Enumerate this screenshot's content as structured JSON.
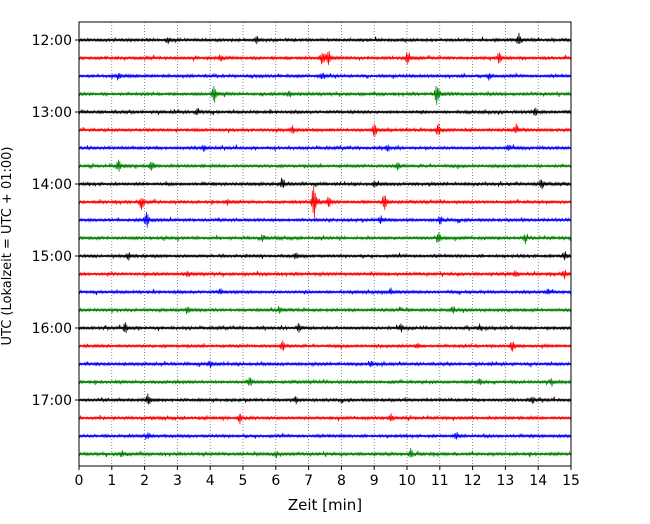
{
  "chart_data": {
    "type": "line",
    "title": "",
    "xlabel": "Zeit  [min]",
    "ylabel": "UTC (Lokalzeit = UTC + 01:00)",
    "xlim": [
      0,
      15
    ],
    "xticks": [
      0,
      1,
      2,
      3,
      4,
      5,
      6,
      7,
      8,
      9,
      10,
      11,
      12,
      13,
      14,
      15
    ],
    "x_grid": "dotted",
    "row_interval_minutes": 15,
    "row_colors": [
      "#000000",
      "#ff0000",
      "#0000ff",
      "#008000"
    ],
    "y_ticks": [
      {
        "label": "12:00",
        "row": 0
      },
      {
        "label": "13:00",
        "row": 4
      },
      {
        "label": "14:00",
        "row": 8
      },
      {
        "label": "15:00",
        "row": 12
      },
      {
        "label": "16:00",
        "row": 16
      },
      {
        "label": "17:00",
        "row": 20
      }
    ],
    "rows": [
      {
        "start": "12:00",
        "color": "#000000",
        "events": [
          [
            5.4,
            0.35
          ],
          [
            13.4,
            0.55
          ],
          [
            2.7,
            0.3
          ]
        ]
      },
      {
        "start": "12:15",
        "color": "#ff0000",
        "events": [
          [
            7.4,
            0.6
          ],
          [
            7.6,
            0.55
          ],
          [
            10.0,
            0.5
          ],
          [
            12.8,
            0.5
          ],
          [
            4.3,
            0.3
          ]
        ]
      },
      {
        "start": "12:30",
        "color": "#0000ff",
        "events": [
          [
            1.2,
            0.3
          ],
          [
            7.4,
            0.35
          ],
          [
            12.5,
            0.3
          ]
        ]
      },
      {
        "start": "12:45",
        "color": "#008000",
        "events": [
          [
            4.1,
            0.9
          ],
          [
            10.9,
            0.85
          ],
          [
            6.4,
            0.3
          ]
        ]
      },
      {
        "start": "13:00",
        "color": "#000000",
        "events": [
          [
            3.6,
            0.3
          ],
          [
            13.9,
            0.35
          ]
        ]
      },
      {
        "start": "13:15",
        "color": "#ff0000",
        "events": [
          [
            9.0,
            0.6
          ],
          [
            10.95,
            0.6
          ],
          [
            6.5,
            0.35
          ],
          [
            13.3,
            0.35
          ]
        ]
      },
      {
        "start": "13:30",
        "color": "#0000ff",
        "events": [
          [
            3.8,
            0.3
          ],
          [
            9.4,
            0.3
          ],
          [
            13.1,
            0.3
          ]
        ]
      },
      {
        "start": "13:45",
        "color": "#008000",
        "events": [
          [
            1.2,
            0.55
          ],
          [
            2.2,
            0.4
          ],
          [
            9.7,
            0.3
          ]
        ]
      },
      {
        "start": "14:00",
        "color": "#000000",
        "events": [
          [
            6.2,
            0.5
          ],
          [
            14.1,
            0.55
          ],
          [
            9.0,
            0.3
          ]
        ]
      },
      {
        "start": "14:15",
        "color": "#ff0000",
        "events": [
          [
            7.15,
            1.7
          ],
          [
            1.9,
            0.65
          ],
          [
            9.3,
            0.75
          ],
          [
            7.6,
            0.5
          ],
          [
            4.5,
            0.3
          ]
        ]
      },
      {
        "start": "14:30",
        "color": "#0000ff",
        "events": [
          [
            2.05,
            0.75
          ],
          [
            9.2,
            0.4
          ],
          [
            11.0,
            0.35
          ]
        ]
      },
      {
        "start": "14:45",
        "color": "#008000",
        "events": [
          [
            10.95,
            0.55
          ],
          [
            5.6,
            0.3
          ],
          [
            13.6,
            0.3
          ]
        ]
      },
      {
        "start": "15:00",
        "color": "#000000",
        "events": [
          [
            14.8,
            0.45
          ],
          [
            1.5,
            0.3
          ],
          [
            6.6,
            0.3
          ]
        ]
      },
      {
        "start": "15:15",
        "color": "#ff0000",
        "events": [
          [
            14.8,
            0.35
          ],
          [
            13.3,
            0.3
          ],
          [
            3.3,
            0.25
          ]
        ]
      },
      {
        "start": "15:30",
        "color": "#0000ff",
        "events": [
          [
            9.5,
            0.3
          ],
          [
            14.3,
            0.3
          ],
          [
            4.3,
            0.25
          ]
        ]
      },
      {
        "start": "15:45",
        "color": "#008000",
        "events": [
          [
            3.3,
            0.3
          ],
          [
            6.1,
            0.3
          ],
          [
            11.4,
            0.3
          ]
        ]
      },
      {
        "start": "16:00",
        "color": "#000000",
        "events": [
          [
            1.4,
            0.45
          ],
          [
            6.7,
            0.45
          ],
          [
            9.8,
            0.35
          ],
          [
            12.2,
            0.3
          ]
        ]
      },
      {
        "start": "16:15",
        "color": "#ff0000",
        "events": [
          [
            6.2,
            0.4
          ],
          [
            13.2,
            0.45
          ],
          [
            10.3,
            0.3
          ]
        ]
      },
      {
        "start": "16:30",
        "color": "#0000ff",
        "events": [
          [
            4.0,
            0.3
          ],
          [
            8.9,
            0.3
          ]
        ]
      },
      {
        "start": "16:45",
        "color": "#008000",
        "events": [
          [
            5.2,
            0.4
          ],
          [
            12.2,
            0.3
          ],
          [
            14.4,
            0.3
          ]
        ]
      },
      {
        "start": "17:00",
        "color": "#000000",
        "events": [
          [
            2.1,
            0.55
          ],
          [
            6.6,
            0.3
          ],
          [
            13.8,
            0.35
          ]
        ]
      },
      {
        "start": "17:15",
        "color": "#ff0000",
        "events": [
          [
            4.9,
            0.45
          ],
          [
            9.5,
            0.35
          ]
        ]
      },
      {
        "start": "17:30",
        "color": "#0000ff",
        "events": [
          [
            2.1,
            0.3
          ],
          [
            11.5,
            0.3
          ]
        ]
      },
      {
        "start": "17:45",
        "color": "#008000",
        "events": [
          [
            10.1,
            0.45
          ],
          [
            1.3,
            0.3
          ],
          [
            6.0,
            0.3
          ]
        ]
      }
    ]
  }
}
